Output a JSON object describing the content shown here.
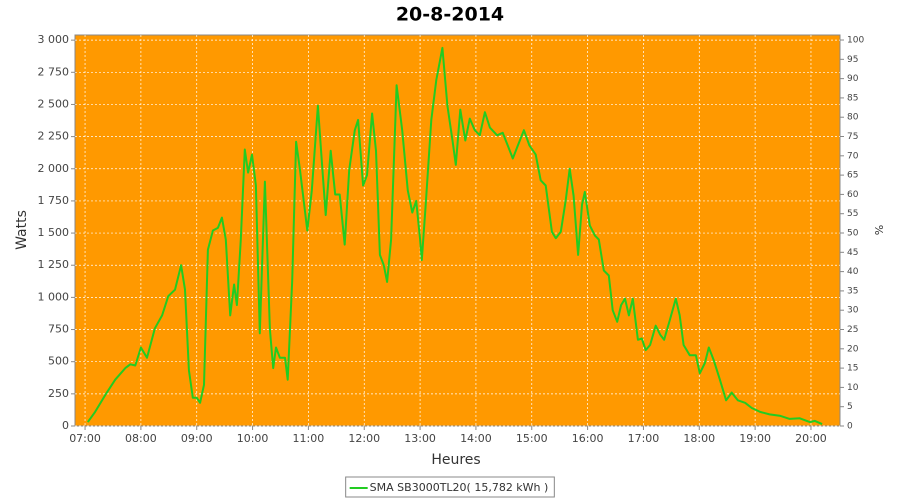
{
  "chart_data": {
    "type": "line",
    "title": "20-8-2014",
    "xlabel": "Heures",
    "ylabel": "Watts",
    "y2label": "%",
    "x": [
      7.05,
      7.18,
      7.36,
      7.54,
      7.72,
      7.81,
      7.9,
      8.0,
      8.11,
      8.25,
      8.38,
      8.49,
      8.61,
      8.72,
      8.79,
      8.86,
      8.93,
      9.0,
      9.06,
      9.13,
      9.2,
      9.29,
      9.38,
      9.45,
      9.52,
      9.6,
      9.67,
      9.72,
      9.79,
      9.86,
      9.92,
      9.99,
      10.06,
      10.13,
      10.22,
      10.31,
      10.37,
      10.42,
      10.49,
      10.58,
      10.63,
      10.71,
      10.78,
      10.85,
      10.98,
      11.06,
      11.17,
      11.24,
      11.31,
      11.4,
      11.48,
      11.56,
      11.65,
      11.73,
      11.83,
      11.89,
      11.98,
      12.05,
      12.14,
      12.21,
      12.28,
      12.35,
      12.41,
      12.48,
      12.58,
      12.68,
      12.78,
      12.86,
      12.93,
      13.0,
      13.03,
      13.1,
      13.2,
      13.29,
      13.4,
      13.49,
      13.58,
      13.64,
      13.72,
      13.81,
      13.89,
      13.98,
      14.07,
      14.16,
      14.25,
      14.38,
      14.48,
      14.57,
      14.66,
      14.75,
      14.86,
      14.96,
      15.07,
      15.16,
      15.25,
      15.36,
      15.43,
      15.52,
      15.61,
      15.68,
      15.75,
      15.83,
      15.9,
      15.95,
      16.04,
      16.13,
      16.2,
      16.29,
      16.38,
      16.45,
      16.53,
      16.6,
      16.67,
      16.74,
      16.81,
      16.9,
      16.97,
      17.04,
      17.12,
      17.22,
      17.3,
      17.37,
      17.47,
      17.58,
      17.65,
      17.72,
      17.83,
      17.94,
      18.01,
      18.1,
      18.17,
      18.26,
      18.37,
      18.48,
      18.58,
      18.69,
      18.82,
      18.94,
      19.09,
      19.26,
      19.44,
      19.62,
      19.8,
      19.98,
      20.07,
      20.2
    ],
    "series": [
      {
        "name": "SMA SB3000TL20( 15,782 kWh )",
        "color": "#22cc22",
        "values": [
          30,
          110,
          240,
          360,
          450,
          480,
          470,
          610,
          530,
          760,
          860,
          1010,
          1060,
          1250,
          1060,
          435,
          220,
          220,
          180,
          320,
          1370,
          1520,
          1540,
          1620,
          1450,
          860,
          1100,
          940,
          1450,
          2150,
          1970,
          2110,
          1870,
          720,
          1900,
          750,
          450,
          610,
          530,
          530,
          360,
          1130,
          2210,
          1990,
          1520,
          1830,
          2490,
          2060,
          1640,
          2140,
          1800,
          1800,
          1410,
          1990,
          2300,
          2380,
          1870,
          1950,
          2430,
          2140,
          1330,
          1250,
          1120,
          1450,
          2650,
          2300,
          1830,
          1660,
          1750,
          1450,
          1290,
          1720,
          2380,
          2690,
          2940,
          2490,
          2220,
          2030,
          2460,
          2220,
          2390,
          2300,
          2260,
          2440,
          2320,
          2260,
          2280,
          2180,
          2080,
          2180,
          2300,
          2180,
          2110,
          1910,
          1870,
          1510,
          1460,
          1510,
          1760,
          2000,
          1790,
          1330,
          1720,
          1820,
          1560,
          1480,
          1450,
          1210,
          1170,
          900,
          810,
          940,
          990,
          860,
          990,
          670,
          680,
          590,
          630,
          780,
          710,
          670,
          820,
          990,
          860,
          630,
          550,
          550,
          410,
          490,
          610,
          510,
          360,
          200,
          260,
          200,
          180,
          140,
          110,
          90,
          80,
          55,
          60,
          30,
          40,
          15
        ]
      }
    ],
    "xlim": [
      6.82,
      20.52
    ],
    "xticks": [
      {
        "value": 7,
        "label": "07:00"
      },
      {
        "value": 8,
        "label": "08:00"
      },
      {
        "value": 9,
        "label": "09:00"
      },
      {
        "value": 10,
        "label": "10:00"
      },
      {
        "value": 11,
        "label": "11:00"
      },
      {
        "value": 12,
        "label": "12:00"
      },
      {
        "value": 13,
        "label": "13:00"
      },
      {
        "value": 14,
        "label": "14:00"
      },
      {
        "value": 15,
        "label": "15:00"
      },
      {
        "value": 16,
        "label": "16:00"
      },
      {
        "value": 17,
        "label": "17:00"
      },
      {
        "value": 18,
        "label": "18:00"
      },
      {
        "value": 19,
        "label": "19:00"
      },
      {
        "value": 20,
        "label": "20:00"
      }
    ],
    "ylim": [
      0,
      3040
    ],
    "yticks": [
      0,
      250,
      500,
      750,
      {
        "value": 1000,
        "label": "1 000"
      },
      {
        "value": 1250,
        "label": "1 250"
      },
      {
        "value": 1500,
        "label": "1 500"
      },
      {
        "value": 1750,
        "label": "1 750"
      },
      {
        "value": 2000,
        "label": "2 000"
      },
      {
        "value": 2250,
        "label": "2 250"
      },
      {
        "value": 2500,
        "label": "2 500"
      },
      {
        "value": 2750,
        "label": "2 750"
      },
      {
        "value": 3000,
        "label": "3 000"
      }
    ],
    "y2lim": [
      0,
      101.3
    ],
    "y2ticks": [
      0,
      5,
      10,
      15,
      20,
      25,
      30,
      35,
      40,
      45,
      50,
      55,
      60,
      65,
      70,
      75,
      80,
      85,
      90,
      95,
      100
    ],
    "grid": true,
    "plot_background": "#ff9900",
    "legend": "bottom"
  }
}
